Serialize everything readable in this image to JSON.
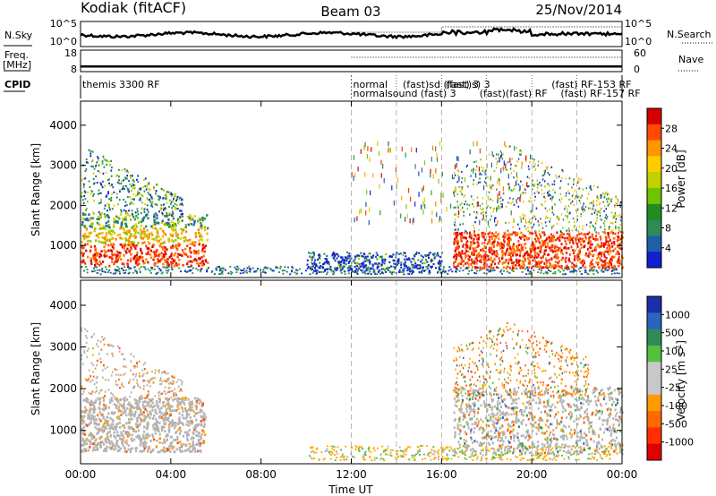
{
  "header": {
    "station": "Kodiak (fitACF)",
    "beam": "Beam 03",
    "date": "25/Nov/2014"
  },
  "chart_data": [
    {
      "type": "line",
      "name": "nsky-panel",
      "left_label": "N.Sky",
      "right_label": "N.Search",
      "y_ticks_left": [
        "10^5",
        "10^0"
      ],
      "y_ticks_right": [
        "10^5",
        "10^0"
      ],
      "series": [
        {
          "name": "N.Sky",
          "style": "solid"
        },
        {
          "name": "N.Search",
          "style": "dotted"
        }
      ]
    },
    {
      "type": "line",
      "name": "freq-panel",
      "left_label_top": "Freq.",
      "left_label_bottom": "[MHz]",
      "right_label": "Nave",
      "y_ticks_left": [
        "18",
        "8"
      ],
      "y_ticks_right": [
        "60",
        "0"
      ],
      "ylim_left": [
        8,
        18
      ],
      "ylim_right": [
        0,
        60
      ],
      "series": [
        {
          "name": "Freq",
          "style": "solid"
        },
        {
          "name": "Nave",
          "style": "dotted"
        }
      ]
    },
    {
      "type": "table",
      "name": "cpid-panel",
      "label": "CPID",
      "entries": [
        {
          "text": "themis 3300 RF",
          "row": 0
        },
        {
          "text": "normal",
          "row": 0
        },
        {
          "text": "normalsound (fast) 3",
          "row": 1
        },
        {
          "text": "(fast)sd (fast) 3",
          "row": 0
        },
        {
          "text": "(fast)s) 3",
          "row": 0
        },
        {
          "text": "(fast)(fast) RF",
          "row": 1
        },
        {
          "text": "(fast) RF-153 RF",
          "row": 0
        },
        {
          "text": "(fast) RF-157 RF",
          "row": 1
        }
      ]
    },
    {
      "type": "heatmap",
      "name": "power-panel",
      "ylabel": "Slant Range [km]",
      "y_ticks": [
        1000,
        2000,
        3000,
        4000
      ],
      "ylim": [
        200,
        4600
      ],
      "xlim": [
        0,
        24
      ],
      "colorbar_label": "Power [dB]",
      "colorbar_ticks": [
        "28",
        "24",
        "20",
        "16",
        "12",
        "8",
        "4"
      ],
      "colorbar_colors": [
        "#d40000",
        "#ff4a00",
        "#ff9500",
        "#ffcc00",
        "#c0d000",
        "#6ec400",
        "#228b22",
        "#2e8b57",
        "#1e5fa8",
        "#1020d0"
      ]
    },
    {
      "type": "heatmap",
      "name": "velocity-panel",
      "ylabel": "Slant Range [km]",
      "y_ticks": [
        1000,
        2000,
        3000,
        4000
      ],
      "ylim": [
        200,
        4600
      ],
      "xlim": [
        0,
        24
      ],
      "xlabel": "Time UT",
      "x_ticks": [
        "00:00",
        "04:00",
        "08:00",
        "12:00",
        "16:00",
        "20:00",
        "00:00"
      ],
      "x_tick_values": [
        0,
        4,
        8,
        12,
        16,
        20,
        24
      ],
      "colorbar_label": "Velocity [m s",
      "colorbar_label_sup": "-1",
      "colorbar_label_end": "]",
      "colorbar_ticks": [
        "1000",
        "500",
        "100",
        "25",
        "-25",
        "-100",
        "-500",
        "-1000"
      ],
      "colorbar_colors": [
        "#1c2fa8",
        "#2a63c0",
        "#2e8b57",
        "#55c040",
        "#c8c8c8",
        "#c8c8c8",
        "#ff9a00",
        "#ff6a00",
        "#ff3000",
        "#e00000"
      ]
    }
  ],
  "colors": {
    "ground_scatter": "#b4b4b4",
    "axis": "#000000",
    "dash_line": "#999999"
  }
}
